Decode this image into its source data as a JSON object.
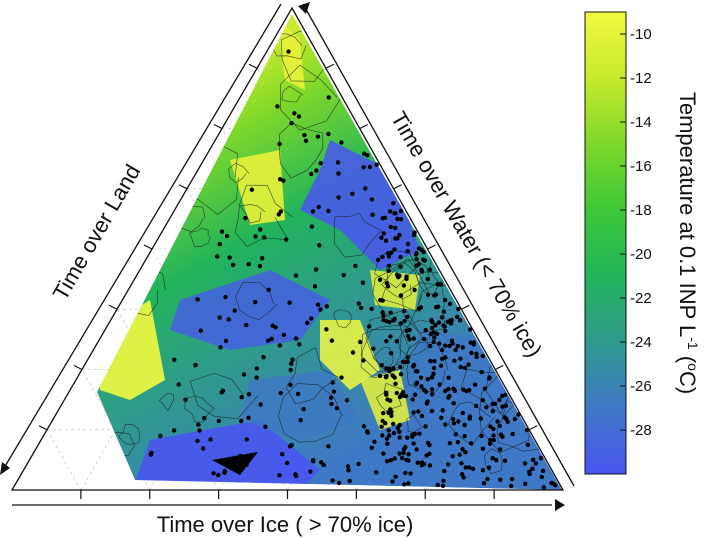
{
  "chart_data": {
    "type": "ternary-contour",
    "axes": {
      "bottom": "Time over Ice ( > 70% ice)",
      "left": "Time over Land",
      "right": "Time over Water (< 70% ice)"
    },
    "colorbar": {
      "title": "Temperature at 0.1 INP L",
      "title_sup": "-1",
      "title_unit": " (",
      "title_unit_sup": "o",
      "title_unit_end": "C)",
      "ticks": [
        "-10",
        "-12",
        "-14",
        "-16",
        "-18",
        "-20",
        "-22",
        "-24",
        "-26",
        "-28"
      ],
      "range": [
        -30,
        -9
      ],
      "colors": [
        "#4a55f0",
        "#3f78c6",
        "#2f9a8d",
        "#22b45a",
        "#3cc838",
        "#7ed82a",
        "#c6ea2c",
        "#f2f940"
      ]
    },
    "grid": "dashed gray",
    "marker": "black dots"
  }
}
